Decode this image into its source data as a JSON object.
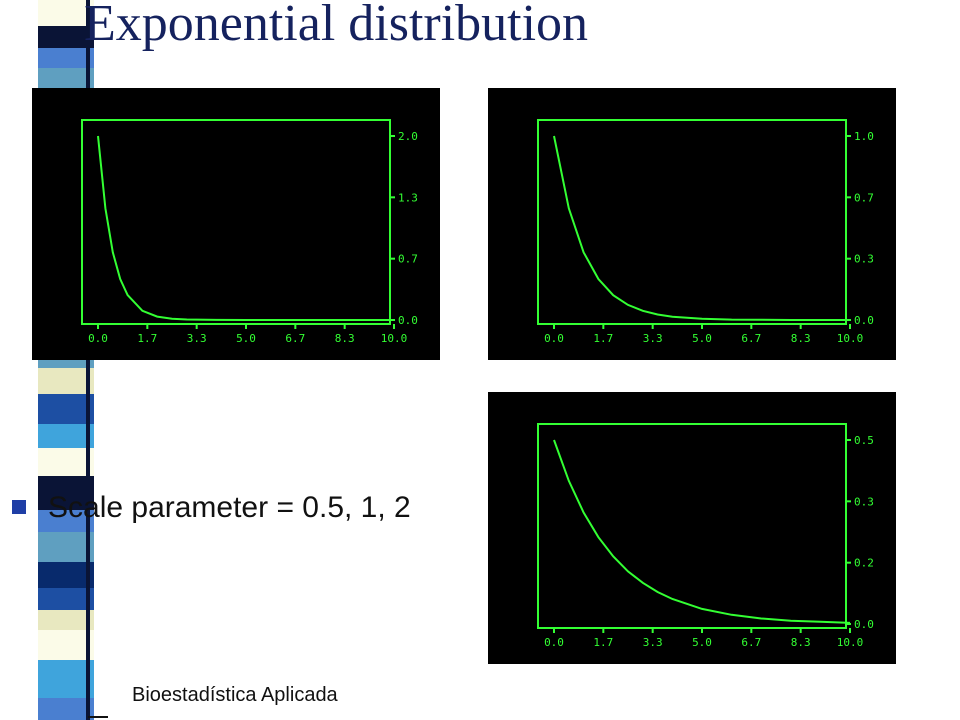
{
  "slide": {
    "title": "Exponential distribution",
    "bullet": "Scale parameter = 0.5, 1, 2",
    "footer": "Bioestadística Aplicada"
  },
  "colors": {
    "title": "#15225e",
    "curve": "#33ff33",
    "frame": "#33ff33",
    "panel_background": "#000000",
    "bullet_marker": "#1f3ea6",
    "stripe": [
      "#fbfbe8",
      "#1d4fa3",
      "#5f9fc0",
      "#0a1436",
      "#3fa4dc",
      "#e8e8c0",
      "#082a6c",
      "#4a7fd0"
    ]
  },
  "chart_data": [
    {
      "type": "line",
      "title": "",
      "xlabel": "",
      "ylabel": "",
      "scale_parameter": 0.5,
      "x_ticks": [
        "0.0",
        "1.7",
        "3.3",
        "5.0",
        "6.7",
        "8.3",
        "10.0"
      ],
      "y_ticks": [
        "2.0",
        "1.3",
        "0.7",
        "0.0"
      ],
      "xlim": [
        0,
        10
      ],
      "ylim": [
        0,
        2
      ],
      "y_axis_side": "right",
      "grid": false,
      "series": [
        {
          "x": [
            0.0,
            0.25,
            0.5,
            0.75,
            1.0,
            1.5,
            2.0,
            2.5,
            3.0,
            4.0,
            5.0,
            6.0,
            7.0,
            8.0,
            9.0,
            10.0
          ],
          "y": [
            2.0,
            1.213,
            0.736,
            0.446,
            0.271,
            0.1,
            0.037,
            0.013,
            0.005,
            0.001,
            0.0,
            0.0,
            0.0,
            0.0,
            0.0,
            0.0
          ]
        }
      ]
    },
    {
      "type": "line",
      "title": "",
      "xlabel": "",
      "ylabel": "",
      "scale_parameter": 1,
      "x_ticks": [
        "0.0",
        "1.7",
        "3.3",
        "5.0",
        "6.7",
        "8.3",
        "10.0"
      ],
      "y_ticks": [
        "1.0",
        "0.7",
        "0.3",
        "0.0"
      ],
      "xlim": [
        0,
        10
      ],
      "ylim": [
        0,
        1
      ],
      "y_axis_side": "right",
      "grid": false,
      "series": [
        {
          "x": [
            0.0,
            0.5,
            1.0,
            1.5,
            2.0,
            2.5,
            3.0,
            3.5,
            4.0,
            5.0,
            6.0,
            7.0,
            8.0,
            9.0,
            10.0
          ],
          "y": [
            1.0,
            0.607,
            0.368,
            0.223,
            0.135,
            0.082,
            0.05,
            0.03,
            0.018,
            0.007,
            0.002,
            0.001,
            0.0,
            0.0,
            0.0
          ]
        }
      ]
    },
    {
      "type": "line",
      "title": "",
      "xlabel": "",
      "ylabel": "",
      "scale_parameter": 2,
      "x_ticks": [
        "0.0",
        "1.7",
        "3.3",
        "5.0",
        "6.7",
        "8.3",
        "10.0"
      ],
      "y_ticks": [
        "0.5",
        "0.3",
        "0.2",
        "0.0"
      ],
      "xlim": [
        0,
        10
      ],
      "ylim": [
        0,
        0.5
      ],
      "y_axis_side": "right",
      "grid": false,
      "series": [
        {
          "x": [
            0.0,
            0.5,
            1.0,
            1.5,
            2.0,
            2.5,
            3.0,
            3.5,
            4.0,
            5.0,
            6.0,
            7.0,
            8.0,
            9.0,
            10.0
          ],
          "y": [
            0.5,
            0.389,
            0.303,
            0.236,
            0.184,
            0.143,
            0.112,
            0.087,
            0.068,
            0.041,
            0.025,
            0.015,
            0.009,
            0.006,
            0.003
          ]
        }
      ]
    }
  ]
}
